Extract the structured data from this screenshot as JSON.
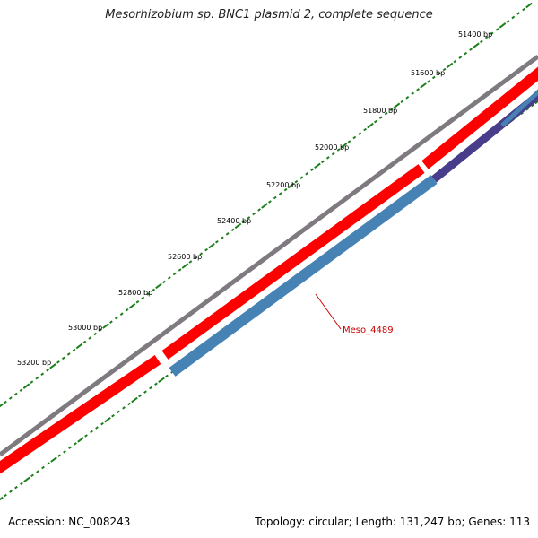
{
  "title": "Mesorhizobium sp. BNC1 plasmid 2, complete sequence",
  "footer": {
    "accession": "Accession: NC_008243",
    "summary": "Topology: circular; Length: 131,247 bp; Genes: 113"
  },
  "ruler": {
    "labels": [
      "51400 bp",
      "51600 bp",
      "51800 bp",
      "52000 bp",
      "52200 bp",
      "52400 bp",
      "52600 bp",
      "52800 bp",
      "53000 bp",
      "53200 bp"
    ],
    "tick_color": "#1b7f1b"
  },
  "tracks": {
    "backbone_color": "#7f7a7f",
    "forward_color": "#ff0000",
    "reverse_color": "#4682b4",
    "reverse_alt_color": "#483d8b"
  },
  "genes": [
    {
      "name": "Meso_4489",
      "label_color": "#cc0000"
    }
  ]
}
